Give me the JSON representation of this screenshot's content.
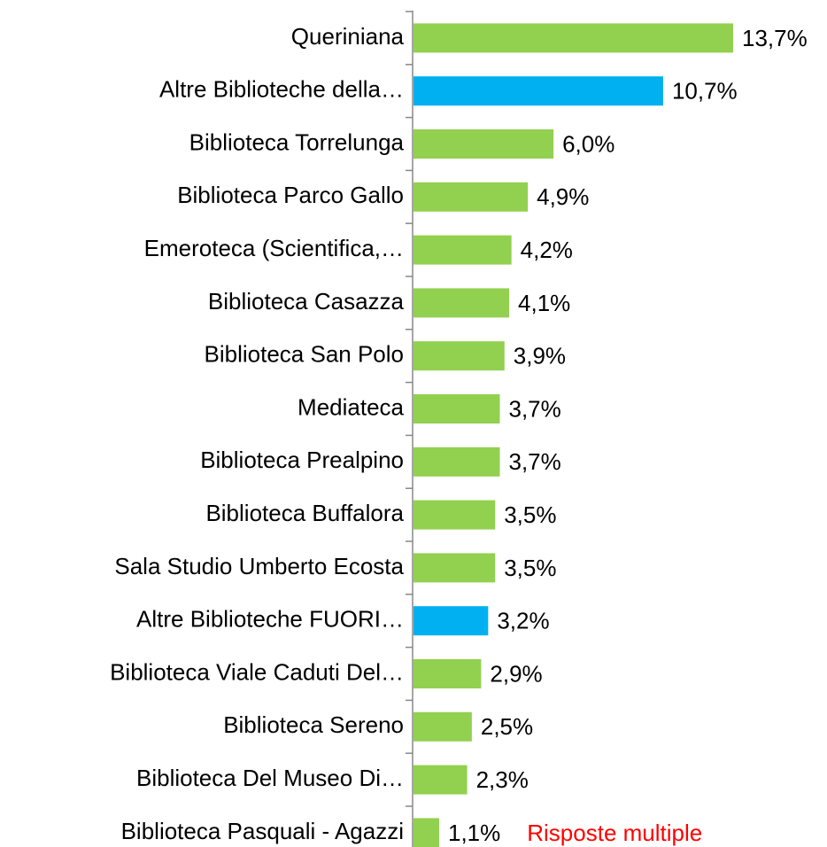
{
  "chart_data": {
    "type": "bar",
    "orientation": "horizontal",
    "categories": [
      "Queriniana",
      "Altre Biblioteche della…",
      "Biblioteca Torrelunga",
      "Biblioteca Parco Gallo",
      "Emeroteca (Scientifica,…",
      "Biblioteca Casazza",
      "Biblioteca San Polo",
      "Mediateca",
      "Biblioteca Prealpino",
      "Biblioteca Buffalora",
      "Sala Studio Umberto Ecosta",
      "Altre Biblioteche FUORI…",
      "Biblioteca Viale Caduti Del…",
      "Biblioteca Sereno",
      "Biblioteca Del Museo Di…",
      "Biblioteca Pasquali  - Agazzi"
    ],
    "values": [
      13.7,
      10.7,
      6.0,
      4.9,
      4.2,
      4.1,
      3.9,
      3.7,
      3.7,
      3.5,
      3.5,
      3.2,
      2.9,
      2.5,
      2.3,
      1.1
    ],
    "value_labels": [
      "13,7%",
      "10,7%",
      "6,0%",
      "4,9%",
      "4,2%",
      "4,1%",
      "3,9%",
      "3,7%",
      "3,7%",
      "3,5%",
      "3,5%",
      "3,2%",
      "2,9%",
      "2,5%",
      "2,3%",
      "1,1%"
    ],
    "colors": [
      "#92d050",
      "#00b0f0",
      "#92d050",
      "#92d050",
      "#92d050",
      "#92d050",
      "#92d050",
      "#92d050",
      "#92d050",
      "#92d050",
      "#92d050",
      "#00b0f0",
      "#92d050",
      "#92d050",
      "#92d050",
      "#92d050"
    ],
    "annotation": "Risposte multiple",
    "annotation_color": "#ff0000"
  }
}
